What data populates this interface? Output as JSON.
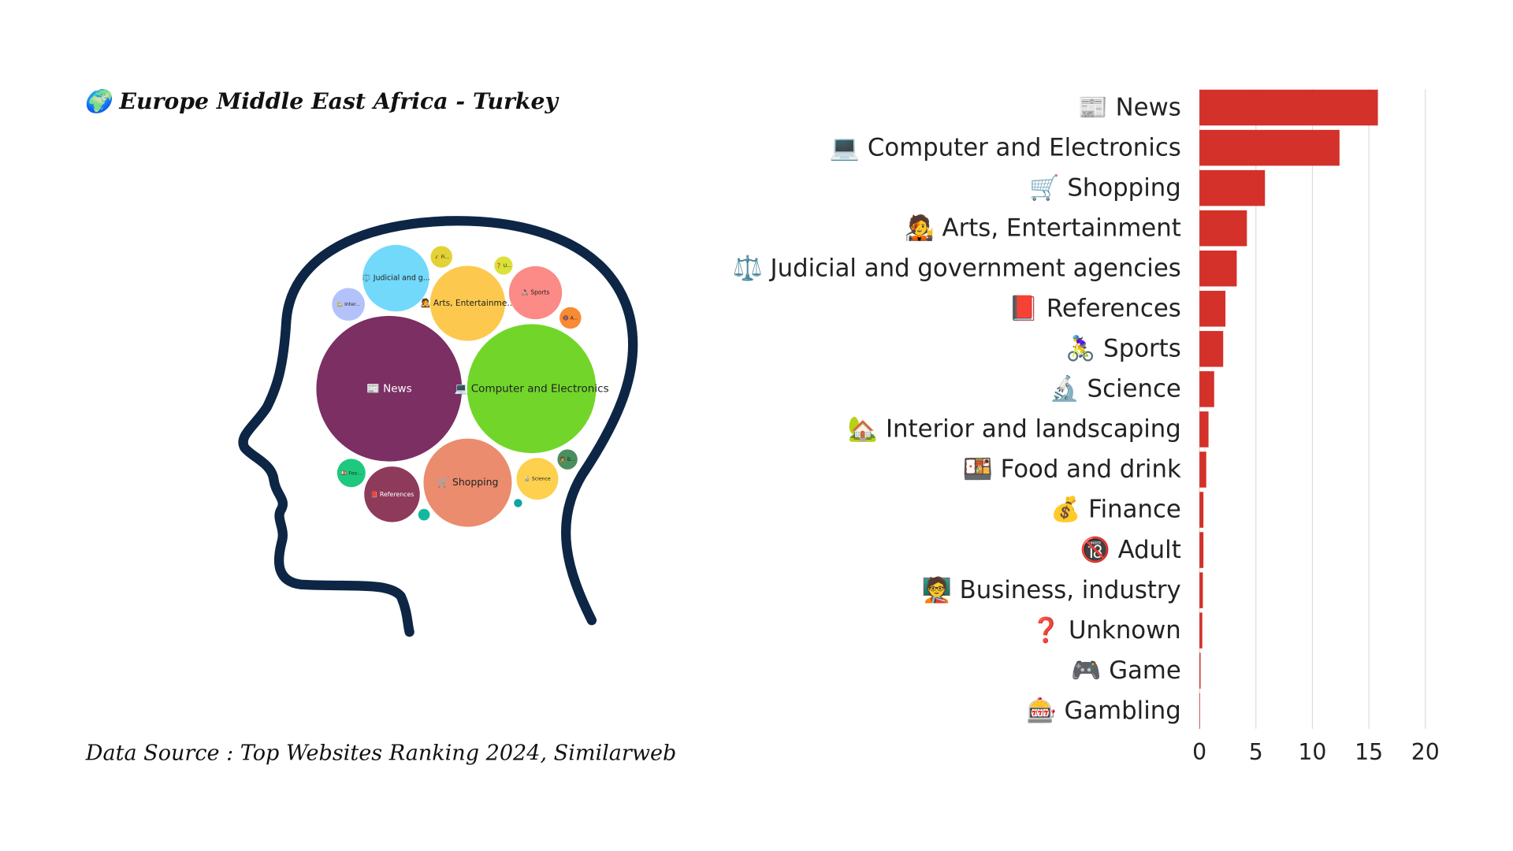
{
  "chart_data": [
    {
      "type": "packed-bubble",
      "title": "🌍 Europe Middle East Africa - Turkey",
      "source": "Data Source : Top Websites Ranking 2024, Similarweb",
      "labels": [
        "📰 News",
        "💻 Computer and Electronics",
        "🛒 Shopping",
        "🧑‍🎤 Arts, Entertainme...",
        "⚖️ Judicial and g...",
        "📕 References",
        "🚴‍♀️ Sports",
        "🔬 Science",
        "🏡 Inter...",
        "🍱 Foo...",
        "💰 Fi...",
        "🔞 A...",
        "🧑‍🏫 B...",
        "❓ U...",
        null,
        null
      ],
      "values": [
        15.8,
        12.4,
        5.8,
        4.2,
        3.3,
        2.3,
        2.1,
        1.3,
        0.8,
        0.6,
        0.35,
        0.35,
        0.3,
        0.25,
        0.1,
        0.05
      ],
      "colors": [
        "#7b2f63",
        "#72d62a",
        "#ea8c6d",
        "#fcc94e",
        "#72d9fb",
        "#8e3a5a",
        "#fc8a86",
        "#fdd04e",
        "#b4c2fb",
        "#1ec97e",
        "#e1d337",
        "#f88b33",
        "#4a8f5e",
        "#dbe23a",
        "#14b8a0",
        "#0ea59d"
      ]
    },
    {
      "type": "bar",
      "orientation": "horizontal",
      "categories": [
        "📰 News",
        "💻 Computer and Electronics",
        "🛒 Shopping",
        "🧑‍🎤 Arts, Entertainment",
        "⚖️ Judicial and government agencies",
        "📕 References",
        "🚴‍♀️ Sports",
        "🔬 Science",
        "🏡 Interior and landscaping",
        "🍱 Food and drink",
        "💰 Finance",
        "🔞 Adult",
        "🧑‍🏫 Business, industry",
        "❓ Unknown",
        "🎮 Game",
        "🎰 Gambling"
      ],
      "values": [
        15.8,
        12.4,
        5.8,
        4.2,
        3.3,
        2.3,
        2.1,
        1.3,
        0.8,
        0.6,
        0.35,
        0.35,
        0.3,
        0.25,
        0.1,
        0.05
      ],
      "color": "#d3312a",
      "xlim": [
        0,
        20
      ],
      "xticks": [
        0,
        5,
        10,
        15,
        20
      ],
      "grid": true
    }
  ]
}
